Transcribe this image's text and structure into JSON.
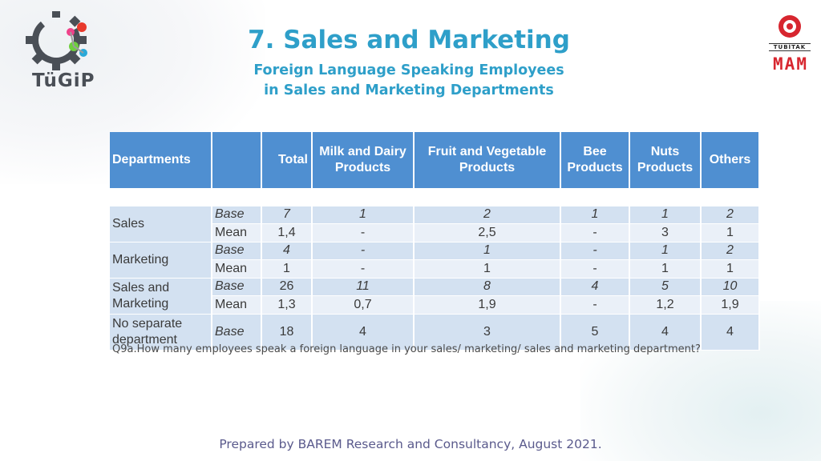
{
  "header": {
    "title": "7. Sales and Marketing",
    "subtitle_line1": "Foreign Language Speaking Employees",
    "subtitle_line2": "in Sales and Marketing Departments"
  },
  "logos": {
    "left_text": "TüGiP",
    "right_small": "TÜBİTAK",
    "right_big": "MAM"
  },
  "table": {
    "headers": {
      "departments": "Departments",
      "total": "Total",
      "milk_1": "Milk and Dairy",
      "milk_2": "Products",
      "fruit_1": "Fruit and Vegetable",
      "fruit_2": "Products",
      "bee_1": "Bee",
      "bee_2": "Products",
      "nuts_1": "Nuts",
      "nuts_2": "Products",
      "others": "Others"
    },
    "groups": [
      {
        "dept_line1": "Sales",
        "rows": [
          {
            "kind": "Base",
            "total": "7",
            "milk": "1",
            "fruit": "2",
            "bee": "1",
            "nuts": "1",
            "others": "2"
          },
          {
            "kind": "Mean",
            "total": "1,4",
            "milk": "-",
            "fruit": "2,5",
            "bee": "-",
            "nuts": "3",
            "others": "1"
          }
        ]
      },
      {
        "dept_line1": "Marketing",
        "rows": [
          {
            "kind": "Base",
            "total": "4",
            "milk": "-",
            "fruit": "1",
            "bee": "-",
            "nuts": "1",
            "others": "2"
          },
          {
            "kind": "Mean",
            "total": "1",
            "milk": "-",
            "fruit": "1",
            "bee": "-",
            "nuts": "1",
            "others": "1"
          }
        ]
      },
      {
        "dept_line1": "Sales and",
        "dept_line2": "Marketing",
        "rows": [
          {
            "kind": "Base",
            "total": "26",
            "milk": "11",
            "fruit": "8",
            "bee": "4",
            "nuts": "5",
            "others": "10"
          },
          {
            "kind": "Mean",
            "total": "1,3",
            "milk": "0,7",
            "fruit": "1,9",
            "bee": "-",
            "nuts": "1,2",
            "others": "1,9"
          }
        ]
      },
      {
        "dept_line1": "No separate",
        "dept_line2": "department",
        "rows": [
          {
            "kind": "Base",
            "total": "18",
            "milk": "4",
            "fruit": "3",
            "bee": "5",
            "nuts": "4",
            "others": "4"
          }
        ]
      }
    ]
  },
  "footnote": "Q9a.How many employees speak a foreign language in your sales/ marketing/ sales and marketing department?",
  "footer": "Prepared by BAREM Research and Consultancy, August 2021.",
  "colors": {
    "accent": "#2e9fc9",
    "header_bg": "#4f8fd1",
    "row_dark": "#d3e1f1",
    "row_light": "#eaf0f8"
  }
}
